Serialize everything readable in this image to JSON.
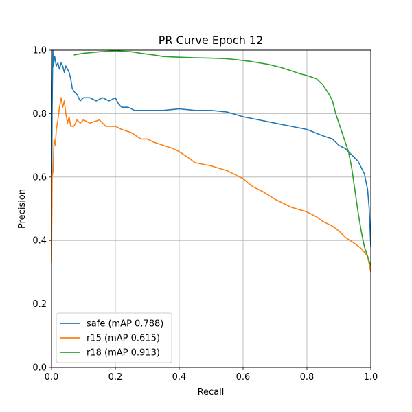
{
  "chart_data": {
    "type": "line",
    "title": "PR Curve Epoch 12",
    "xlabel": "Recall",
    "ylabel": "Precision",
    "xlim": [
      0,
      1
    ],
    "ylim": [
      0,
      1
    ],
    "xticks": [
      "0.0",
      "0.2",
      "0.4",
      "0.6",
      "0.8",
      "1.0"
    ],
    "yticks": [
      "0.0",
      "0.2",
      "0.4",
      "0.6",
      "0.8",
      "1.0"
    ],
    "grid": true,
    "legend_position": "lower-left",
    "series": [
      {
        "name": "safe (mAP 0.788)",
        "color": "#1f77b4",
        "points": [
          [
            0.0,
            0.38
          ],
          [
            0.002,
            0.8
          ],
          [
            0.004,
            1.0
          ],
          [
            0.006,
            0.95
          ],
          [
            0.01,
            0.98
          ],
          [
            0.015,
            0.95
          ],
          [
            0.02,
            0.96
          ],
          [
            0.025,
            0.94
          ],
          [
            0.03,
            0.96
          ],
          [
            0.035,
            0.95
          ],
          [
            0.04,
            0.93
          ],
          [
            0.045,
            0.95
          ],
          [
            0.05,
            0.94
          ],
          [
            0.055,
            0.93
          ],
          [
            0.06,
            0.91
          ],
          [
            0.065,
            0.88
          ],
          [
            0.07,
            0.87
          ],
          [
            0.08,
            0.86
          ],
          [
            0.085,
            0.85
          ],
          [
            0.09,
            0.84
          ],
          [
            0.1,
            0.85
          ],
          [
            0.12,
            0.85
          ],
          [
            0.14,
            0.84
          ],
          [
            0.16,
            0.85
          ],
          [
            0.18,
            0.84
          ],
          [
            0.2,
            0.85
          ],
          [
            0.21,
            0.83
          ],
          [
            0.22,
            0.82
          ],
          [
            0.24,
            0.82
          ],
          [
            0.26,
            0.81
          ],
          [
            0.28,
            0.81
          ],
          [
            0.3,
            0.81
          ],
          [
            0.35,
            0.81
          ],
          [
            0.4,
            0.815
          ],
          [
            0.45,
            0.81
          ],
          [
            0.5,
            0.81
          ],
          [
            0.55,
            0.805
          ],
          [
            0.6,
            0.79
          ],
          [
            0.65,
            0.78
          ],
          [
            0.7,
            0.77
          ],
          [
            0.75,
            0.76
          ],
          [
            0.8,
            0.75
          ],
          [
            0.85,
            0.73
          ],
          [
            0.88,
            0.72
          ],
          [
            0.9,
            0.7
          ],
          [
            0.92,
            0.69
          ],
          [
            0.94,
            0.67
          ],
          [
            0.96,
            0.65
          ],
          [
            0.98,
            0.61
          ],
          [
            0.99,
            0.56
          ],
          [
            0.995,
            0.5
          ],
          [
            1.0,
            0.38
          ]
        ]
      },
      {
        "name": "r15 (mAP 0.615)",
        "color": "#ff7f0e",
        "points": [
          [
            0.0,
            0.33
          ],
          [
            0.002,
            0.6
          ],
          [
            0.005,
            0.62
          ],
          [
            0.008,
            0.72
          ],
          [
            0.012,
            0.7
          ],
          [
            0.015,
            0.75
          ],
          [
            0.02,
            0.78
          ],
          [
            0.025,
            0.82
          ],
          [
            0.03,
            0.85
          ],
          [
            0.035,
            0.82
          ],
          [
            0.04,
            0.84
          ],
          [
            0.045,
            0.8
          ],
          [
            0.05,
            0.77
          ],
          [
            0.055,
            0.79
          ],
          [
            0.06,
            0.76
          ],
          [
            0.07,
            0.76
          ],
          [
            0.08,
            0.78
          ],
          [
            0.09,
            0.77
          ],
          [
            0.1,
            0.78
          ],
          [
            0.12,
            0.77
          ],
          [
            0.15,
            0.78
          ],
          [
            0.17,
            0.76
          ],
          [
            0.2,
            0.76
          ],
          [
            0.22,
            0.75
          ],
          [
            0.25,
            0.74
          ],
          [
            0.28,
            0.72
          ],
          [
            0.3,
            0.72
          ],
          [
            0.32,
            0.71
          ],
          [
            0.35,
            0.7
          ],
          [
            0.38,
            0.69
          ],
          [
            0.4,
            0.68
          ],
          [
            0.43,
            0.66
          ],
          [
            0.45,
            0.645
          ],
          [
            0.5,
            0.635
          ],
          [
            0.55,
            0.62
          ],
          [
            0.6,
            0.595
          ],
          [
            0.63,
            0.57
          ],
          [
            0.66,
            0.555
          ],
          [
            0.7,
            0.53
          ],
          [
            0.75,
            0.505
          ],
          [
            0.8,
            0.49
          ],
          [
            0.83,
            0.475
          ],
          [
            0.85,
            0.46
          ],
          [
            0.88,
            0.445
          ],
          [
            0.9,
            0.43
          ],
          [
            0.92,
            0.41
          ],
          [
            0.95,
            0.39
          ],
          [
            0.97,
            0.375
          ],
          [
            0.99,
            0.35
          ],
          [
            1.0,
            0.3
          ]
        ]
      },
      {
        "name": "r18 (mAP 0.913)",
        "color": "#2ca02c",
        "points": [
          [
            0.07,
            0.985
          ],
          [
            0.1,
            0.99
          ],
          [
            0.15,
            0.995
          ],
          [
            0.2,
            0.998
          ],
          [
            0.25,
            0.995
          ],
          [
            0.28,
            0.99
          ],
          [
            0.32,
            0.985
          ],
          [
            0.35,
            0.98
          ],
          [
            0.4,
            0.978
          ],
          [
            0.45,
            0.976
          ],
          [
            0.5,
            0.975
          ],
          [
            0.55,
            0.973
          ],
          [
            0.58,
            0.97
          ],
          [
            0.62,
            0.965
          ],
          [
            0.65,
            0.96
          ],
          [
            0.68,
            0.955
          ],
          [
            0.7,
            0.95
          ],
          [
            0.72,
            0.945
          ],
          [
            0.75,
            0.935
          ],
          [
            0.78,
            0.925
          ],
          [
            0.8,
            0.92
          ],
          [
            0.83,
            0.91
          ],
          [
            0.85,
            0.89
          ],
          [
            0.87,
            0.86
          ],
          [
            0.88,
            0.84
          ],
          [
            0.89,
            0.8
          ],
          [
            0.9,
            0.77
          ],
          [
            0.91,
            0.74
          ],
          [
            0.92,
            0.71
          ],
          [
            0.93,
            0.68
          ],
          [
            0.94,
            0.63
          ],
          [
            0.95,
            0.56
          ],
          [
            0.96,
            0.49
          ],
          [
            0.97,
            0.43
          ],
          [
            0.98,
            0.38
          ],
          [
            0.99,
            0.35
          ],
          [
            1.0,
            0.32
          ]
        ]
      }
    ]
  }
}
